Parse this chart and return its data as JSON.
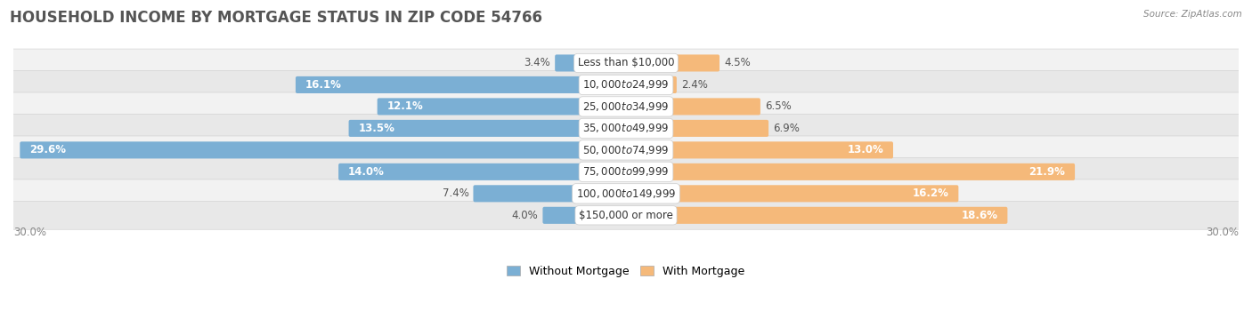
{
  "title": "HOUSEHOLD INCOME BY MORTGAGE STATUS IN ZIP CODE 54766",
  "source": "Source: ZipAtlas.com",
  "categories": [
    "Less than $10,000",
    "$10,000 to $24,999",
    "$25,000 to $34,999",
    "$35,000 to $49,999",
    "$50,000 to $74,999",
    "$75,000 to $99,999",
    "$100,000 to $149,999",
    "$150,000 or more"
  ],
  "without_mortgage": [
    3.4,
    16.1,
    12.1,
    13.5,
    29.6,
    14.0,
    7.4,
    4.0
  ],
  "with_mortgage": [
    4.5,
    2.4,
    6.5,
    6.9,
    13.0,
    21.9,
    16.2,
    18.6
  ],
  "color_without": "#7bafd4",
  "color_with": "#f5b97a",
  "color_without_dark": "#4a80b8",
  "color_with_dark": "#e89040",
  "row_color_light": "#f2f2f2",
  "row_color_dark": "#e8e8e8",
  "xlim": 30.0,
  "legend_labels": [
    "Without Mortgage",
    "With Mortgage"
  ],
  "title_fontsize": 12,
  "bar_label_fontsize": 8.5,
  "cat_label_fontsize": 8.5,
  "axis_label_fontsize": 8.5
}
